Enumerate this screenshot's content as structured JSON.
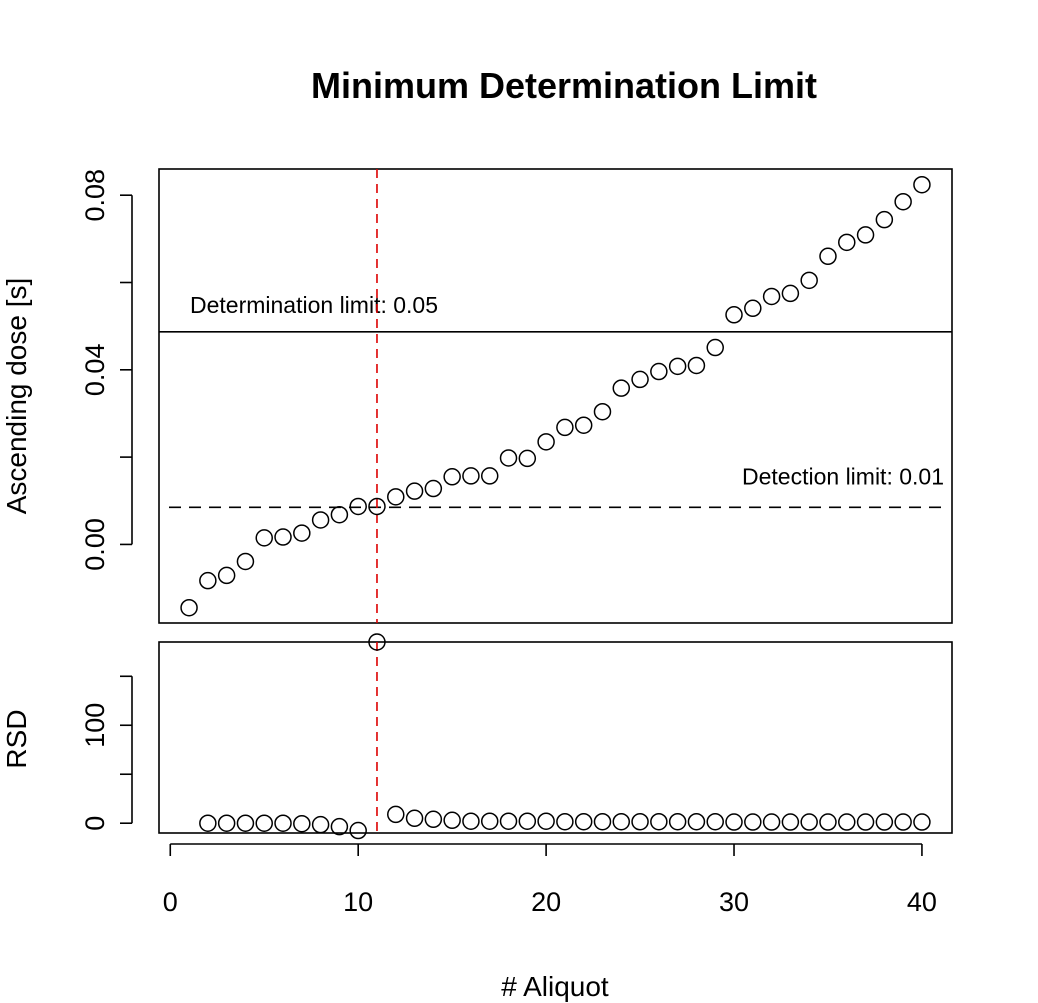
{
  "chart_data": {
    "type": "scatter",
    "title": "Minimum Determination Limit",
    "xlabel": "# Aliquot",
    "xlim": [
      -0.6,
      41.6
    ],
    "xticks": [
      0,
      10,
      20,
      30,
      40
    ],
    "panels": [
      {
        "name": "dose",
        "ylabel": "Ascending dose [s]",
        "ylim": [
          -0.018,
          0.086
        ],
        "yticks": [
          0.0,
          0.02,
          0.04,
          0.06,
          0.08
        ],
        "ytick_labels": [
          "0.00",
          "",
          "0.04",
          "",
          "0.08"
        ],
        "x": [
          1,
          2,
          3,
          4,
          5,
          6,
          7,
          8,
          9,
          10,
          11,
          12,
          13,
          14,
          15,
          16,
          17,
          18,
          19,
          20,
          21,
          22,
          23,
          24,
          25,
          26,
          27,
          28,
          29,
          30,
          31,
          32,
          33,
          34,
          35,
          36,
          37,
          38,
          39,
          40
        ],
        "y": [
          -0.0145,
          -0.0083,
          -0.0071,
          -0.0039,
          0.0015,
          0.0017,
          0.0026,
          0.0056,
          0.0068,
          0.0087,
          0.0087,
          0.0109,
          0.0122,
          0.0128,
          0.0155,
          0.0157,
          0.0157,
          0.0198,
          0.0197,
          0.0235,
          0.0268,
          0.0273,
          0.0304,
          0.0358,
          0.0378,
          0.0396,
          0.0408,
          0.041,
          0.0451,
          0.0526,
          0.0541,
          0.0568,
          0.0575,
          0.0605,
          0.066,
          0.0692,
          0.0709,
          0.0744,
          0.0785,
          0.0824
        ],
        "reference_lines": [
          {
            "y": 0.0487,
            "style": "solid",
            "label": "Determination limit: 0.05"
          },
          {
            "y": 0.0085,
            "style": "dashed",
            "label": "Detection limit: 0.01"
          }
        ]
      },
      {
        "name": "rsd",
        "ylabel": "RSD",
        "ylim": [
          -10,
          185
        ],
        "yticks": [
          0,
          50,
          100,
          150
        ],
        "ytick_labels": [
          "0",
          "",
          "100",
          ""
        ],
        "x": [
          2,
          3,
          4,
          5,
          6,
          7,
          8,
          9,
          10,
          11,
          12,
          13,
          14,
          15,
          16,
          17,
          18,
          19,
          20,
          21,
          22,
          23,
          24,
          25,
          26,
          27,
          28,
          29,
          30,
          31,
          32,
          33,
          34,
          35,
          36,
          37,
          38,
          39,
          40
        ],
        "y": [
          0,
          0,
          0,
          0,
          0,
          -0.5,
          -1.5,
          -3.5,
          -7.5,
          185,
          9,
          5,
          4,
          3,
          2,
          2,
          2,
          2,
          2,
          1.5,
          1.5,
          1.5,
          1.5,
          1.5,
          1.5,
          1.5,
          1.5,
          1.5,
          1.2,
          1.2,
          1.2,
          1.2,
          1.2,
          1.2,
          1.2,
          1.2,
          1.2,
          1.2,
          1.2
        ]
      }
    ],
    "vertical_marker": {
      "x": 11,
      "style": "dashed",
      "color": "#dd0000"
    },
    "point_color": "#000000"
  }
}
